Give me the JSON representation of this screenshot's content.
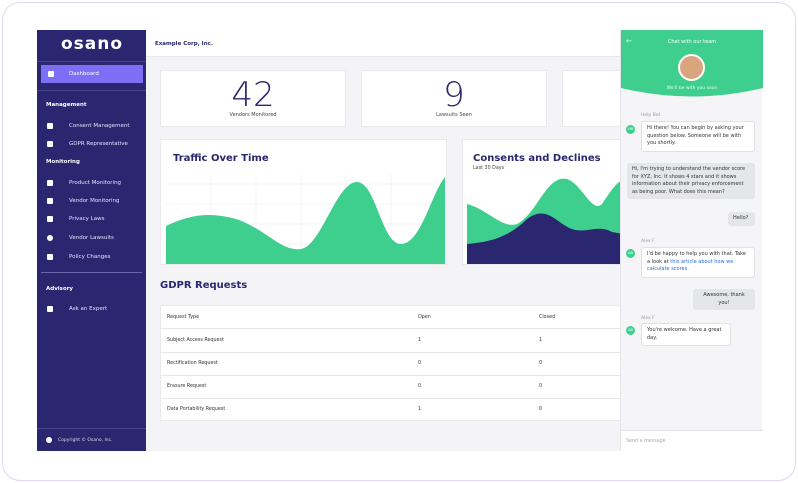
{
  "sidebar": {
    "logo": "osano",
    "active": "Dashboard",
    "sections": [
      {
        "title": "Management",
        "items": [
          "Consent Management",
          "GDPR Representative"
        ]
      },
      {
        "title": "Monitoring",
        "items": [
          "Product Monitoring",
          "Vendor Monitoring",
          "Privacy Laws",
          "Vendor Lawsuits",
          "Policy Changes"
        ]
      },
      {
        "title": "Advisory",
        "items": [
          "Ask an Expert"
        ]
      }
    ],
    "footer": "Copyright © Osano, Inc."
  },
  "header": {
    "company": "Example Corp, Inc."
  },
  "stats": [
    {
      "value": "42",
      "label": "Vendors Monitored"
    },
    {
      "value": "9",
      "label": "Lawsuits Seen"
    }
  ],
  "charts": [
    {
      "title": "Traffic Over Time"
    },
    {
      "title": "Consents and Declines",
      "subtitle": "Last 30 Days"
    }
  ],
  "table": {
    "title": "GDPR Requests",
    "columns": [
      "Request Type",
      "Open",
      "Closed"
    ],
    "rows": [
      [
        "Subject Access Request",
        "1",
        "1"
      ],
      [
        "Rectification Request",
        "0",
        "0"
      ],
      [
        "Erasure Request",
        "0",
        "0"
      ],
      [
        "Data Portability Request",
        "1",
        "0"
      ]
    ]
  },
  "chat": {
    "title": "Chat with our team",
    "status": "We'll be with you soon",
    "messages": [
      {
        "sender": "Help Bot",
        "initials": "HB",
        "text": "Hi there! You can begin by asking your question below. Someone will be with you shortly."
      },
      {
        "text": "Hi, I'm trying to understand the vendor score for XYZ, Inc. It shows 4 stars and it shows information about their privacy enforcement as being poor. What does this mean?"
      },
      {
        "text": "Hello?"
      },
      {
        "sender": "Alex F",
        "initials": "AB",
        "text": "I'd be happy to help you with that. Take a look at ",
        "link": "this article about how we calculate scores."
      },
      {
        "text": "Awesome, thank you!"
      },
      {
        "sender": "Alex F",
        "initials": "AB",
        "text": "You're welcome. Have a great day."
      }
    ],
    "placeholder": "Send a message"
  }
}
